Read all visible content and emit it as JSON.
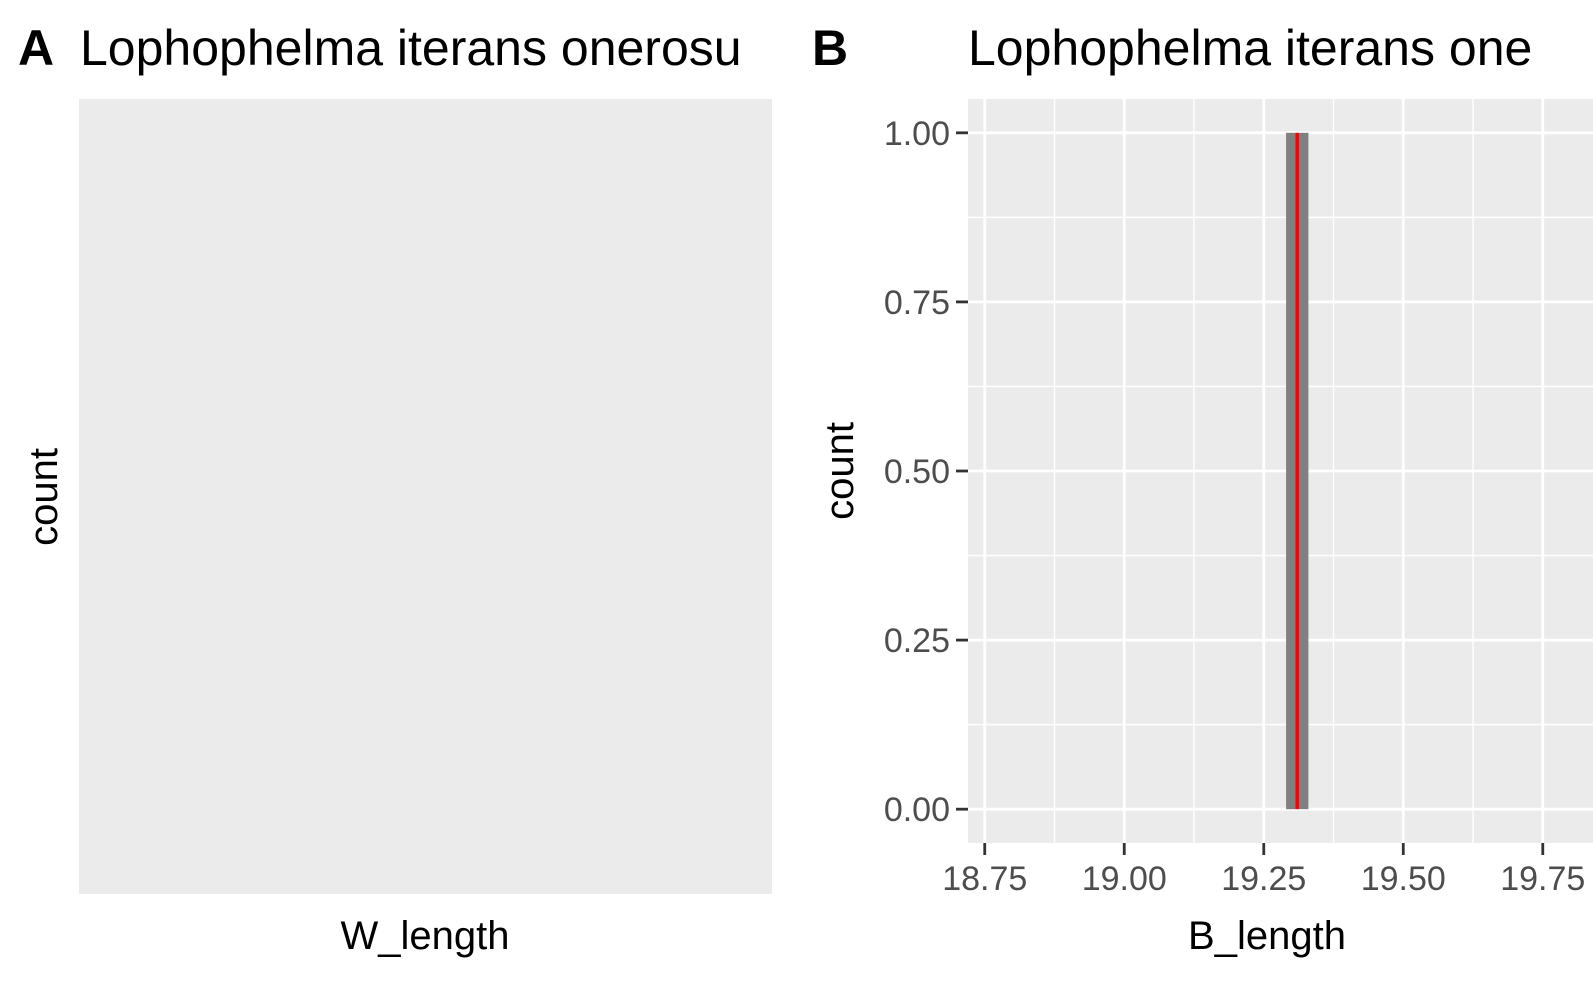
{
  "chart_data": [
    {
      "panel_tag": "A",
      "type": "bar",
      "title": "Lophophelma iterans onerosu",
      "xlabel": "W_length",
      "ylabel": "count",
      "grid": false,
      "series": [],
      "colors": {
        "panel_background": "#ebebeb"
      }
    },
    {
      "panel_tag": "B",
      "type": "bar",
      "title": "Lophophelma iterans one",
      "xlabel": "B_length",
      "ylabel": "count",
      "grid": true,
      "xlim": [
        18.72,
        19.84
      ],
      "ylim": [
        -0.05,
        1.05
      ],
      "x_ticks": [
        {
          "value": 18.75,
          "label": "18.75"
        },
        {
          "value": 19.0,
          "label": "19.00"
        },
        {
          "value": 19.25,
          "label": "19.25"
        },
        {
          "value": 19.5,
          "label": "19.50"
        },
        {
          "value": 19.75,
          "label": "19.75"
        }
      ],
      "y_ticks": [
        {
          "value": 0.0,
          "label": "0.00"
        },
        {
          "value": 0.25,
          "label": "0.25"
        },
        {
          "value": 0.5,
          "label": "0.50"
        },
        {
          "value": 0.75,
          "label": "0.75"
        },
        {
          "value": 1.0,
          "label": "1.00"
        }
      ],
      "bars": [
        {
          "x_start": 19.29,
          "x_end": 19.33,
          "count": 1
        }
      ],
      "vline": {
        "x": 19.31,
        "color": "#ff0000"
      },
      "colors": {
        "panel_background": "#ebebeb",
        "gridline": "#ffffff",
        "bar_fill": "#808080",
        "tick_mark": "#333333"
      }
    }
  ]
}
